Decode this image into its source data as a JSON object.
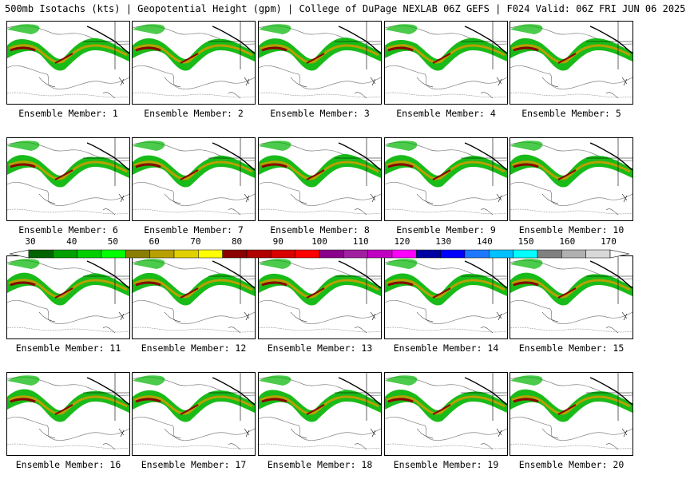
{
  "header": {
    "title": "500mb Isotachs (kts) | Geopotential Height (gpm) | College of DuPage NEXLAB  06Z GEFS | F024 Valid: 06Z FRI JUN 06 2025"
  },
  "caption_prefix": "Ensemble Member: ",
  "members": [
    {
      "label": "Ensemble Member: 1",
      "number": 1
    },
    {
      "label": "Ensemble Member: 2",
      "number": 2
    },
    {
      "label": "Ensemble Member: 3",
      "number": 3
    },
    {
      "label": "Ensemble Member: 4",
      "number": 4
    },
    {
      "label": "Ensemble Member: 5",
      "number": 5
    },
    {
      "label": "Ensemble Member: 6",
      "number": 6
    },
    {
      "label": "Ensemble Member: 7",
      "number": 7
    },
    {
      "label": "Ensemble Member: 8",
      "number": 8
    },
    {
      "label": "Ensemble Member: 9",
      "number": 9
    },
    {
      "label": "Ensemble Member: 10",
      "number": 10
    },
    {
      "label": "Ensemble Member: 11",
      "number": 11
    },
    {
      "label": "Ensemble Member: 12",
      "number": 12
    },
    {
      "label": "Ensemble Member: 13",
      "number": 13
    },
    {
      "label": "Ensemble Member: 14",
      "number": 14
    },
    {
      "label": "Ensemble Member: 15",
      "number": 15
    },
    {
      "label": "Ensemble Member: 16",
      "number": 16
    },
    {
      "label": "Ensemble Member: 17",
      "number": 17
    },
    {
      "label": "Ensemble Member: 18",
      "number": 18
    },
    {
      "label": "Ensemble Member: 19",
      "number": 19
    },
    {
      "label": "Ensemble Member: 20",
      "number": 20
    }
  ],
  "colorbar": {
    "ticks": [
      "30",
      "40",
      "50",
      "60",
      "70",
      "80",
      "90",
      "100",
      "110",
      "120",
      "130",
      "140",
      "150",
      "160",
      "170"
    ],
    "colors": [
      "#006400",
      "#00a000",
      "#00d000",
      "#00ff00",
      "#8b7d00",
      "#b8a000",
      "#e0d000",
      "#ffff00",
      "#8b0000",
      "#b00000",
      "#d80000",
      "#ff0000",
      "#8b008b",
      "#a020a0",
      "#c000c0",
      "#ff00ff",
      "#0000a0",
      "#0000ff",
      "#1e78ff",
      "#00c0ff",
      "#00ffff",
      "#808080",
      "#b0b0b0",
      "#d8d8d8"
    ]
  },
  "map_colors": {
    "jet_weak": "#00b400",
    "jet_strong": "#009000",
    "jet_mid": "#b8a000",
    "jet_core": "#8b0000",
    "height_contour": "#808080",
    "borders": "#000000"
  }
}
